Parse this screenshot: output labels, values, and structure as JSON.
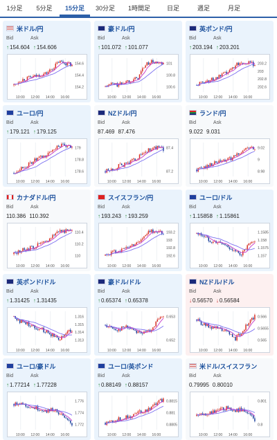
{
  "tabs": [
    {
      "label": "1分足",
      "active": false
    },
    {
      "label": "5分足",
      "active": false
    },
    {
      "label": "15分足",
      "active": true
    },
    {
      "label": "30分足",
      "active": false
    },
    {
      "label": "1時間足",
      "active": false
    },
    {
      "label": "日足",
      "active": false
    },
    {
      "label": "週足",
      "active": false
    },
    {
      "label": "月足",
      "active": false
    }
  ],
  "bid_label": "Bid",
  "ask_label": "Ask",
  "x_ticks": [
    "10:00",
    "12:00",
    "14:00",
    "16:00"
  ],
  "colors": {
    "up_candle": "#d93025",
    "down_candle": "#1a3f9b",
    "ma1": "#c437c8",
    "ma2": "#7a6ff0",
    "arrow_up": "#2a8a3a",
    "arrow_down": "#c02525",
    "title": "#1a4f9c"
  },
  "cards": [
    {
      "pair": "米ドル/円",
      "flag": "us",
      "bid": "154.604",
      "ask": "154.606",
      "dir": "up",
      "bg": "blue",
      "yticks": [
        "154.6",
        "154.4",
        "154.2"
      ],
      "trend": [
        0.2,
        0.35,
        0.4,
        0.45,
        0.5,
        0.55,
        0.7,
        0.9,
        0.85,
        0.8
      ]
    },
    {
      "pair": "豪ドル/円",
      "flag": "au",
      "bid": "101.072",
      "ask": "101.077",
      "dir": "up",
      "bg": "blue",
      "yticks": [
        "101",
        "100.8",
        "100.6"
      ],
      "trend": [
        0.15,
        0.25,
        0.2,
        0.3,
        0.35,
        0.4,
        0.75,
        0.9,
        0.85,
        0.8
      ]
    },
    {
      "pair": "英ポンド/円",
      "flag": "gb",
      "bid": "203.194",
      "ask": "203.201",
      "dir": "up",
      "bg": "blue",
      "yticks": [
        "203.2",
        "203",
        "202.8",
        "202.6"
      ],
      "trend": [
        0.2,
        0.3,
        0.35,
        0.4,
        0.5,
        0.6,
        0.8,
        0.9,
        0.85,
        0.82
      ]
    },
    {
      "pair": "ユーロ/円",
      "flag": "eu",
      "bid": "179.121",
      "ask": "179.125",
      "dir": "up",
      "bg": "blue",
      "yticks": [
        "179",
        "178.8",
        "178.6"
      ],
      "trend": [
        0.1,
        0.25,
        0.3,
        0.45,
        0.55,
        0.6,
        0.8,
        0.92,
        0.88,
        0.85
      ]
    },
    {
      "pair": "NZドル/円",
      "flag": "nz",
      "bid": "87.469",
      "ask": "87.476",
      "dir": "none",
      "bg": "plain",
      "yticks": [
        "87.4",
        "87.2"
      ],
      "trend": [
        0.15,
        0.2,
        0.3,
        0.35,
        0.45,
        0.55,
        0.7,
        0.8,
        0.85,
        0.8
      ]
    },
    {
      "pair": "ランド/円",
      "flag": "za",
      "bid": "9.022",
      "ask": "9.031",
      "dir": "none",
      "bg": "plain",
      "yticks": [
        "9.02",
        "9",
        "8.98"
      ],
      "trend": [
        0.2,
        0.25,
        0.35,
        0.4,
        0.45,
        0.5,
        0.6,
        0.75,
        0.85,
        0.8
      ]
    },
    {
      "pair": "カナダドル/円",
      "flag": "ca",
      "bid": "110.386",
      "ask": "110.392",
      "dir": "none",
      "bg": "plain",
      "yticks": [
        "110.4",
        "110.2",
        "110"
      ],
      "trend": [
        0.2,
        0.3,
        0.35,
        0.4,
        0.5,
        0.55,
        0.75,
        0.9,
        0.88,
        0.85
      ]
    },
    {
      "pair": "スイスフラン/円",
      "flag": "ch",
      "bid": "193.243",
      "ask": "193.259",
      "dir": "up",
      "bg": "blue",
      "yticks": [
        "193.2",
        "193",
        "192.8",
        "192.6"
      ],
      "trend": [
        0.15,
        0.25,
        0.3,
        0.35,
        0.45,
        0.55,
        0.7,
        0.9,
        0.85,
        0.82
      ]
    },
    {
      "pair": "ユーロ/ドル",
      "flag": "eu",
      "bid": "1.15858",
      "ask": "1.15861",
      "dir": "up",
      "bg": "blue",
      "yticks": [
        "1.1585",
        "1.158",
        "1.1575",
        "1.157"
      ],
      "trend": [
        0.8,
        0.75,
        0.6,
        0.55,
        0.5,
        0.4,
        0.25,
        0.2,
        0.45,
        0.55
      ]
    },
    {
      "pair": "英ポンド/ドル",
      "flag": "gb",
      "bid": "1.31425",
      "ask": "1.31435",
      "dir": "up",
      "bg": "blue",
      "yticks": [
        "1.316",
        "1.315",
        "1.314",
        "1.313"
      ],
      "trend": [
        0.85,
        0.7,
        0.65,
        0.55,
        0.5,
        0.4,
        0.3,
        0.2,
        0.35,
        0.45
      ]
    },
    {
      "pair": "豪ドル/ドル",
      "flag": "au",
      "bid": "0.65374",
      "ask": "0.65378",
      "dir": "up",
      "bg": "blue",
      "yticks": [
        "0.653",
        "0.652"
      ],
      "trend": [
        0.6,
        0.5,
        0.45,
        0.55,
        0.5,
        0.4,
        0.35,
        0.45,
        0.7,
        0.85
      ]
    },
    {
      "pair": "NZドル/ドル",
      "flag": "nz",
      "bid": "0.56570",
      "ask": "0.56584",
      "dir": "down",
      "bg": "red",
      "yticks": [
        "0.566",
        "0.5655",
        "0.565"
      ],
      "trend": [
        0.75,
        0.6,
        0.55,
        0.5,
        0.45,
        0.35,
        0.2,
        0.4,
        0.65,
        0.85
      ]
    },
    {
      "pair": "ユーロ/豪ドル",
      "flag": "eu",
      "bid": "1.77214",
      "ask": "1.77228",
      "dir": "up",
      "bg": "blue",
      "yticks": [
        "1.776",
        "1.774",
        "1.772"
      ],
      "trend": [
        0.75,
        0.8,
        0.7,
        0.65,
        0.6,
        0.55,
        0.6,
        0.5,
        0.3,
        0.15
      ]
    },
    {
      "pair": "ユーロ/英ポンド",
      "flag": "eu",
      "bid": "0.88149",
      "ask": "0.88157",
      "dir": "up",
      "bg": "blue",
      "yticks": [
        "0.8815",
        "0.881",
        "0.8805"
      ],
      "trend": [
        0.2,
        0.25,
        0.3,
        0.35,
        0.4,
        0.5,
        0.55,
        0.65,
        0.8,
        0.9
      ]
    },
    {
      "pair": "米ドル/スイスフラン",
      "flag": "us",
      "bid": "0.79995",
      "ask": "0.80010",
      "dir": "none",
      "bg": "plain",
      "yticks": [
        "0.801",
        "0.8"
      ],
      "trend": [
        0.4,
        0.45,
        0.5,
        0.55,
        0.6,
        0.65,
        0.55,
        0.6,
        0.45,
        0.3
      ]
    }
  ]
}
